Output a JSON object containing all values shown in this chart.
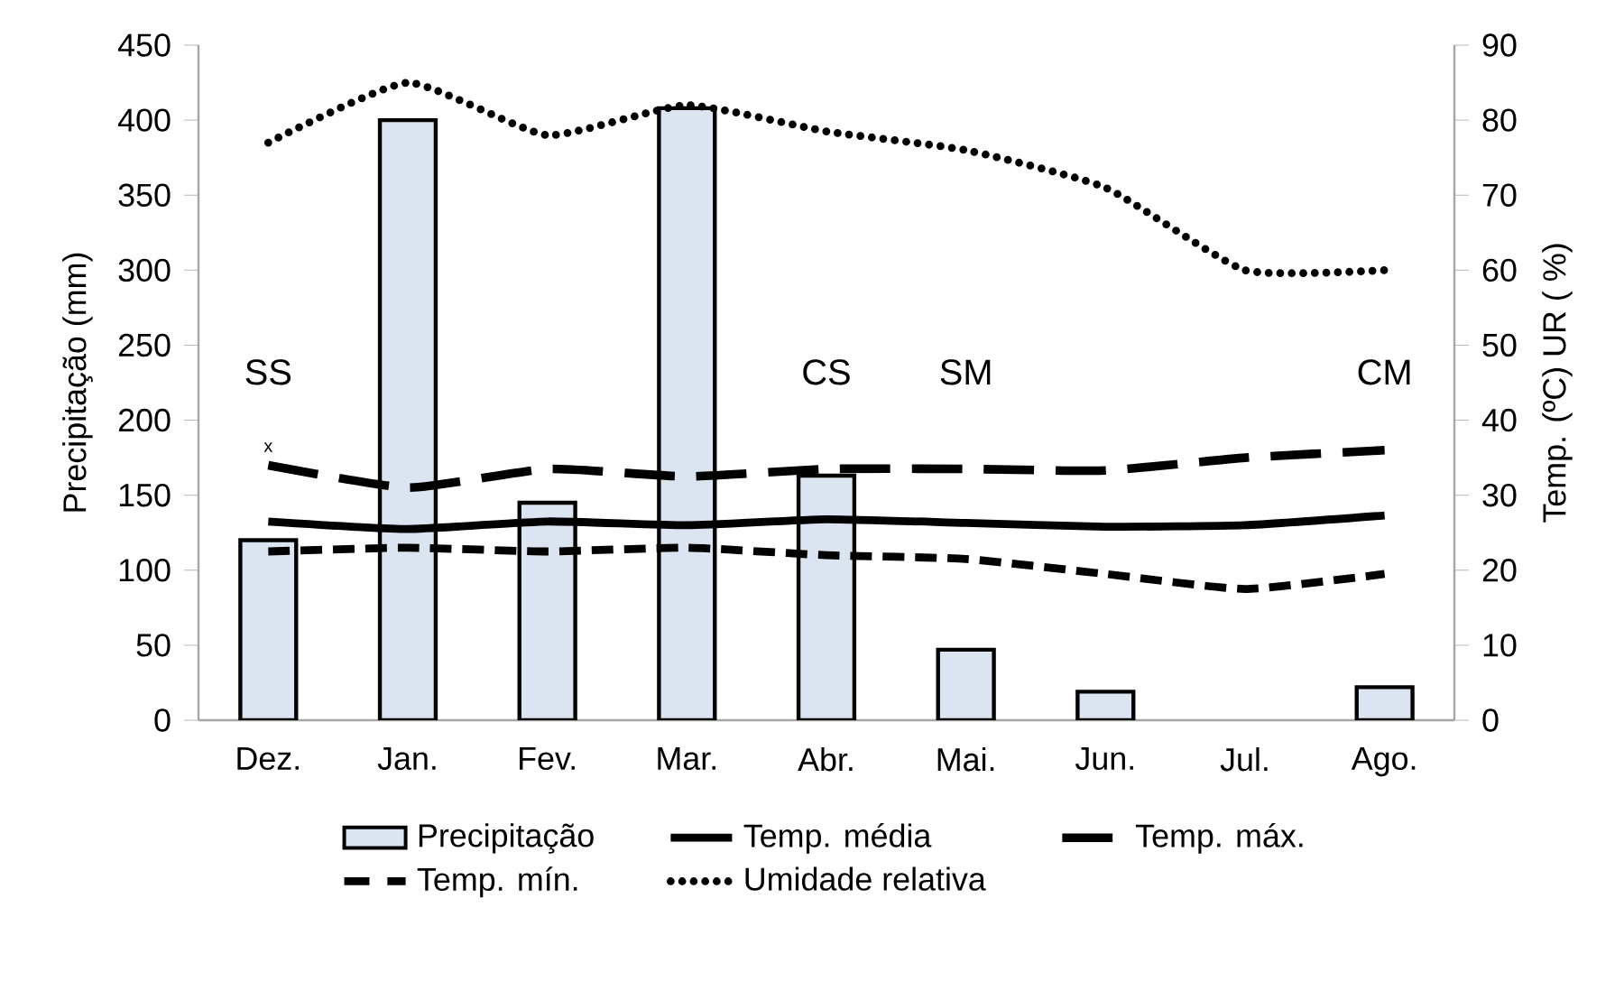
{
  "chart_data": {
    "type": "bar",
    "categories": [
      "Dez.",
      "Jan.",
      "Fev.",
      "Mar.",
      "Abr.",
      "Mai.",
      "Jun.",
      "Jul.",
      "Ago."
    ],
    "ylabel": "Precipitação (mm)",
    "y2label": "Temp. (ºC) UR ( %)",
    "ylim": [
      0,
      450
    ],
    "yticks": [
      0,
      50,
      100,
      150,
      200,
      250,
      300,
      350,
      400,
      450
    ],
    "y2lim": [
      0,
      90
    ],
    "y2ticks": [
      0,
      10,
      20,
      30,
      40,
      50,
      60,
      70,
      80,
      90
    ],
    "series": [
      {
        "name": "Precipitação",
        "color": "#dbe5f1",
        "values": [
          120,
          400,
          145,
          408,
          163,
          47,
          19,
          null,
          22
        ]
      },
      {
        "name": "Temp. média",
        "type": "line",
        "axis": "y2",
        "line_style": "solid",
        "color": "#000000",
        "values": [
          26.5,
          25.5,
          26.5,
          26,
          26.8,
          26.3,
          25.8,
          26,
          27.3
        ]
      },
      {
        "name": "Temp. máx.",
        "type": "line",
        "axis": "y2",
        "line_style": "longdashed",
        "color": "#000000",
        "values": [
          34,
          31,
          33.5,
          32.5,
          33.5,
          33.5,
          33.3,
          35,
          36
        ]
      },
      {
        "name": "Temp. mín.",
        "type": "line",
        "axis": "y2",
        "line_style": "dashed",
        "color": "#000000",
        "values": [
          22.5,
          23,
          22.5,
          23,
          22,
          21.5,
          19.5,
          17.5,
          19.5
        ]
      },
      {
        "name": "Umidade relativa",
        "type": "line",
        "axis": "y2",
        "line_style": "dotted",
        "color": "#000000",
        "values": [
          77,
          85,
          78,
          82,
          78.5,
          76,
          71,
          60,
          60
        ]
      }
    ],
    "annotations": [
      "SS",
      "x",
      "CS",
      "SM",
      "CM"
    ],
    "legend": "bottom",
    "marker": "none"
  }
}
